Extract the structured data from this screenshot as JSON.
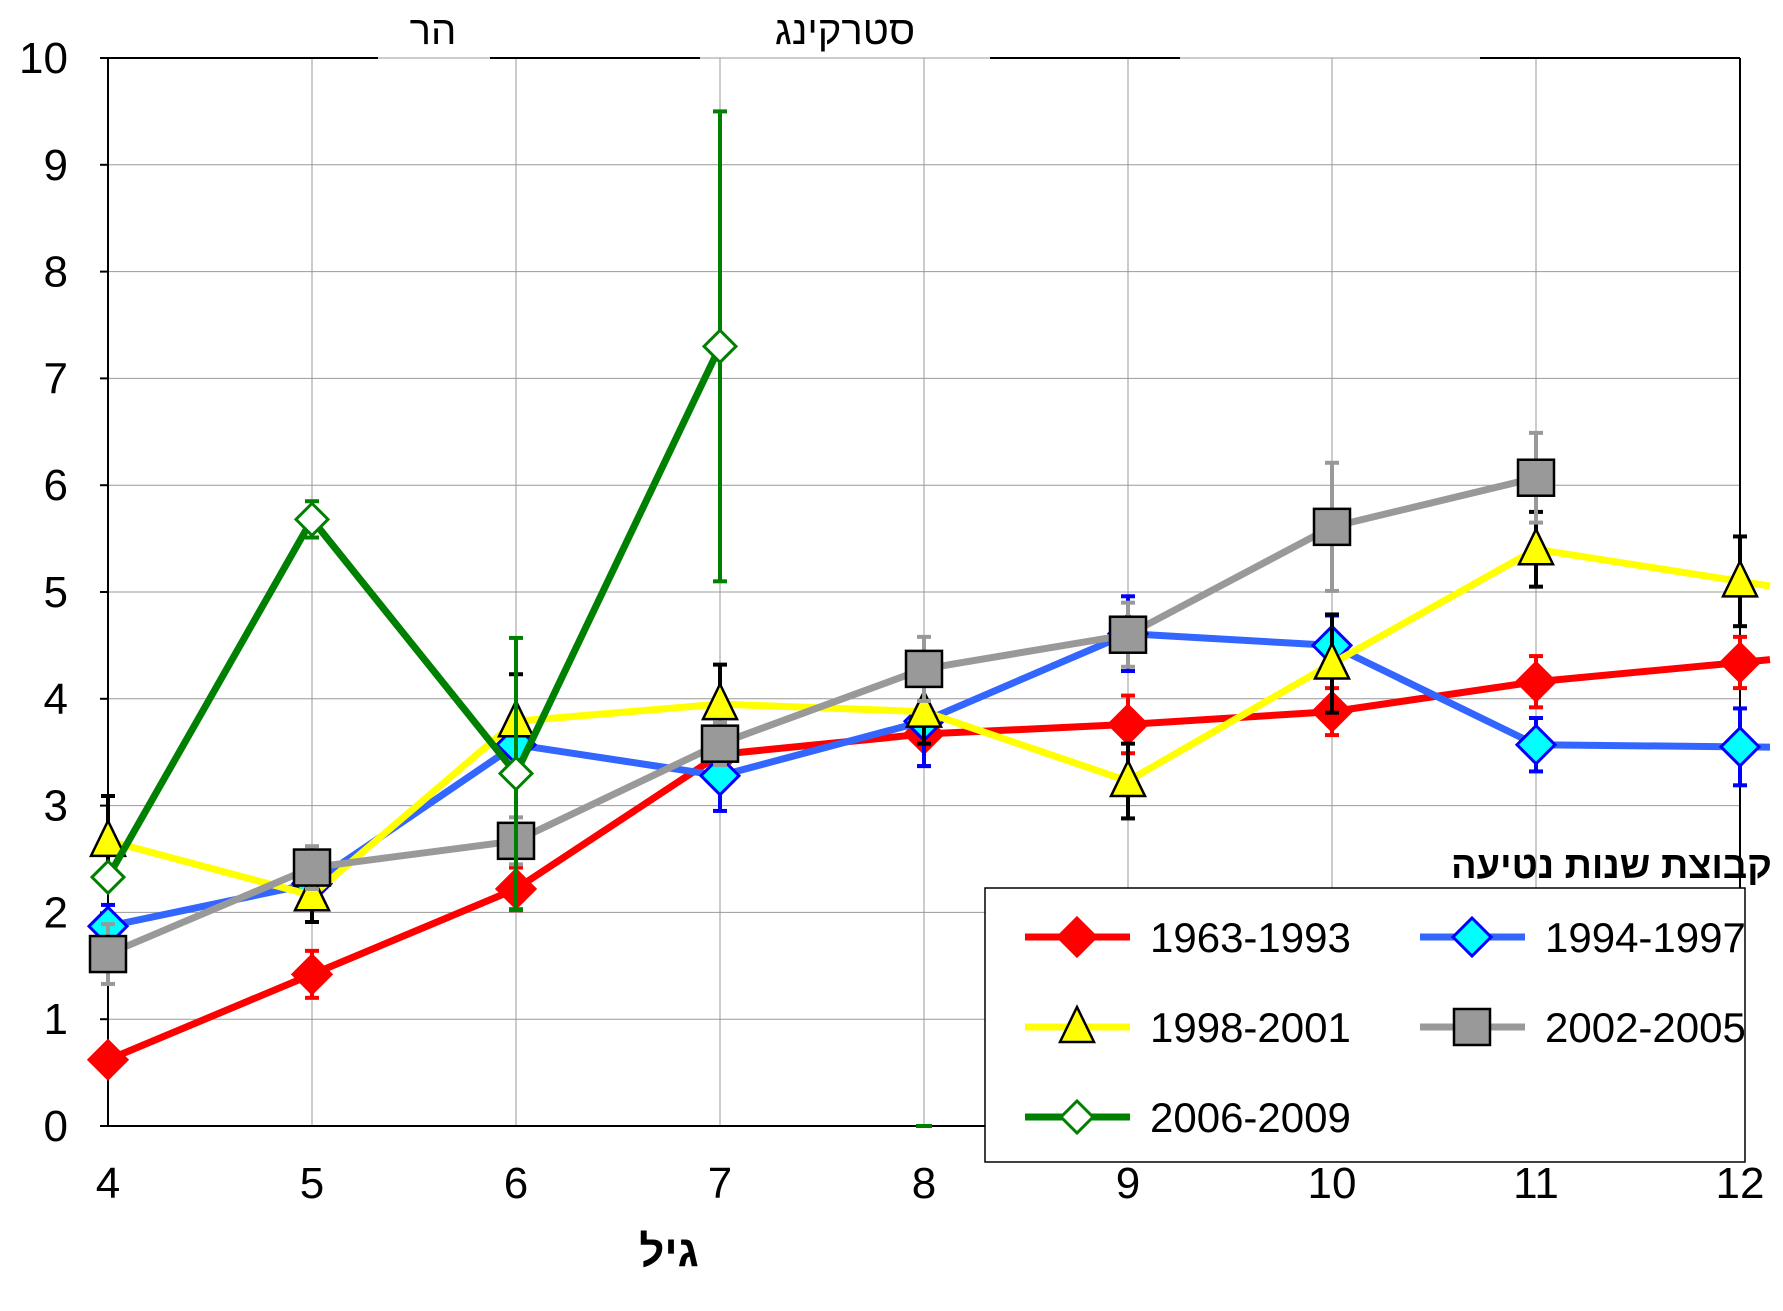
{
  "chart_data": {
    "type": "line",
    "title": "",
    "xlabel": "גיל",
    "ylabel": "",
    "xlim": [
      4,
      12
    ],
    "ylim": [
      0,
      10
    ],
    "x_ticks": [
      "4",
      "5",
      "6",
      "7",
      "8",
      "9",
      "10",
      "11",
      "12"
    ],
    "y_ticks": [
      "0",
      "1",
      "2",
      "3",
      "4",
      "5",
      "6",
      "7",
      "8",
      "9",
      "10"
    ],
    "grid": true,
    "top_labels": [
      "הר",
      "סטרקינג"
    ],
    "legend_title": "קבוצת שנות נטיעה",
    "legend_position": "bottom-right",
    "series": [
      {
        "name": "1963-1993",
        "color": "#ff0000",
        "marker": "diamond-filled",
        "marker_fill": "#ff0000",
        "marker_stroke": "#ff0000",
        "x": [
          4,
          5,
          6,
          7,
          8,
          9,
          10,
          11,
          12
        ],
        "y": [
          0.62,
          1.42,
          2.22,
          3.48,
          3.67,
          3.76,
          3.88,
          4.16,
          4.34
        ],
        "err": [
          0,
          0.22,
          0.2,
          0.15,
          0.3,
          0.27,
          0.22,
          0.24,
          0.24
        ]
      },
      {
        "name": "1994-1997",
        "color": "#3366ff",
        "marker": "diamond-filled",
        "marker_fill": "#00ffff",
        "marker_stroke": "#0000ff",
        "x": [
          4,
          5,
          6,
          7,
          8,
          9,
          10,
          11,
          12
        ],
        "y": [
          1.87,
          2.27,
          3.57,
          3.28,
          3.79,
          4.61,
          4.5,
          3.57,
          3.55
        ],
        "err": [
          0.2,
          0.0,
          0.25,
          0.33,
          0.42,
          0.35,
          0.28,
          0.25,
          0.36
        ]
      },
      {
        "name": "1998-2001",
        "color": "#ffff00",
        "marker": "triangle",
        "marker_fill": "#ffff00",
        "marker_stroke": "#000000",
        "x": [
          4,
          5,
          6,
          7,
          8,
          9,
          10,
          11,
          12
        ],
        "y": [
          2.67,
          2.16,
          3.79,
          3.95,
          3.88,
          3.23,
          4.33,
          5.4,
          5.1
        ],
        "err": [
          0.42,
          0.25,
          0.44,
          0.37,
          0.3,
          0.35,
          0.46,
          0.35,
          0.42
        ]
      },
      {
        "name": "2002-2005",
        "color": "#999999",
        "marker": "square",
        "marker_fill": "#999999",
        "marker_stroke": "#000000",
        "x": [
          4,
          5,
          6,
          7,
          8,
          9,
          10,
          11,
          12
        ],
        "y": [
          1.61,
          2.42,
          2.67,
          3.58,
          4.28,
          4.6,
          5.61,
          6.07,
          null
        ],
        "err": [
          0.28,
          0.2,
          0.22,
          0.2,
          0.3,
          0.3,
          0.6,
          0.42,
          0
        ]
      },
      {
        "name": "2006-2009",
        "color": "#008000",
        "marker": "diamond-open",
        "marker_fill": "#ffffff",
        "marker_stroke": "#008000",
        "x": [
          4,
          5,
          6,
          7,
          8
        ],
        "y": [
          2.33,
          5.68,
          3.3,
          7.3,
          0
        ],
        "err": [
          0,
          0.17,
          1.27,
          2.2,
          0
        ],
        "line_until_index": 3
      }
    ]
  }
}
